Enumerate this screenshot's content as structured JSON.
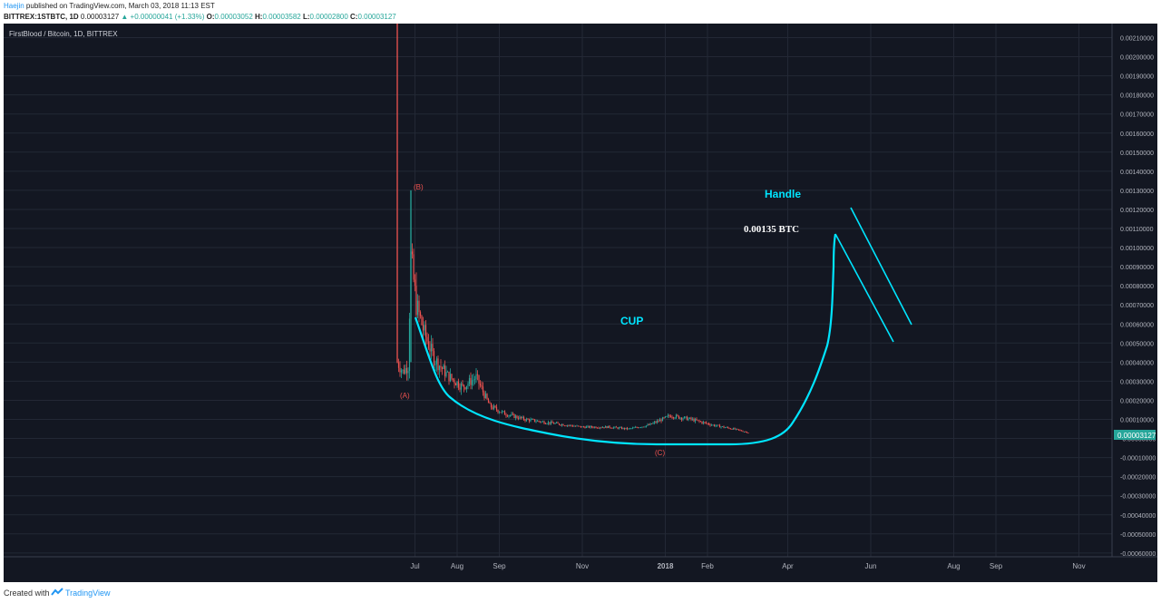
{
  "header": {
    "author": "Haejin",
    "published_text": "published on TradingView.com, March 03, 2018 11:13 EST",
    "symbol": "BITTREX:1STBTC, 1D",
    "change": "▲ +0.00000041 (+1.33%)",
    "current_price": "0.00003127",
    "ohlc": {
      "o_label": "O:",
      "o": "0.00003052",
      "h_label": "H:",
      "h": "0.00003582",
      "l_label": "L:",
      "l": "0.00002800",
      "c_label": "C:",
      "c": "0.00003127"
    }
  },
  "footer": {
    "created_with": "Created with",
    "brand": "TradingView",
    "icon": "tradingview-logo-icon"
  },
  "colors": {
    "background": "#131722",
    "grid": "#232835",
    "bull": "#26a69a",
    "bear": "#ef5350",
    "annotation": "#00e5ff",
    "price_tag": "#26a69a"
  },
  "chart_data": {
    "type": "candlestick",
    "title": "FirstBlood / Bitcoin, 1D, BITTREX",
    "x_tick_labels": [
      "Jul",
      "Aug",
      "Sep",
      "Nov",
      "2018",
      "Feb",
      "Apr",
      "Jun",
      "Aug",
      "Sep",
      "Nov"
    ],
    "y_tick_labels": [
      "0.00210000",
      "0.00200000",
      "0.00190000",
      "0.00180000",
      "0.00170000",
      "0.00160000",
      "0.00150000",
      "0.00140000",
      "0.00130000",
      "0.00120000",
      "0.00110000",
      "0.00100000",
      "0.00090000",
      "0.00080000",
      "0.00070000",
      "0.00060000",
      "0.00050000",
      "0.00040000",
      "0.00030000",
      "0.00020000",
      "0.00010000",
      "-0.00000000",
      "-0.00010000",
      "-0.00020000",
      "-0.00030000",
      "-0.00040000",
      "-0.00050000",
      "-0.00060000"
    ],
    "ylim": [
      -0.00065,
      0.00218
    ],
    "last_price_label": "0.00003127",
    "wave_labels": [
      "(A)",
      "(B)",
      "(C)"
    ],
    "annotations": {
      "handle": "Handle",
      "target": "0.00135 BTC",
      "cup": "CUP"
    },
    "series": {
      "approx_close": [
        [
          "2017-06-18",
          0.0004
        ],
        [
          "2017-06-22",
          0.00035
        ],
        [
          "2017-06-26",
          0.00038
        ],
        [
          "2017-06-28",
          0.00095
        ],
        [
          "2017-07-02",
          0.0007
        ],
        [
          "2017-07-08",
          0.00055
        ],
        [
          "2017-07-15",
          0.00042
        ],
        [
          "2017-07-25",
          0.00033
        ],
        [
          "2017-08-05",
          0.00027
        ],
        [
          "2017-08-15",
          0.00032
        ],
        [
          "2017-08-25",
          0.00017
        ],
        [
          "2017-09-05",
          0.00013
        ],
        [
          "2017-09-20",
          0.0001
        ],
        [
          "2017-10-10",
          8e-05
        ],
        [
          "2017-11-01",
          6e-05
        ],
        [
          "2017-11-20",
          6e-05
        ],
        [
          "2017-12-05",
          5e-05
        ],
        [
          "2017-12-20",
          7e-05
        ],
        [
          "2018-01-05",
          0.00012
        ],
        [
          "2018-01-20",
          0.0001
        ],
        [
          "2018-02-05",
          7e-05
        ],
        [
          "2018-02-20",
          5e-05
        ],
        [
          "2018-03-03",
          3.127e-05
        ]
      ],
      "spikes": [
        [
          "2017-06-18",
          0.00218
        ],
        [
          "2017-06-28",
          0.0013
        ]
      ]
    }
  }
}
